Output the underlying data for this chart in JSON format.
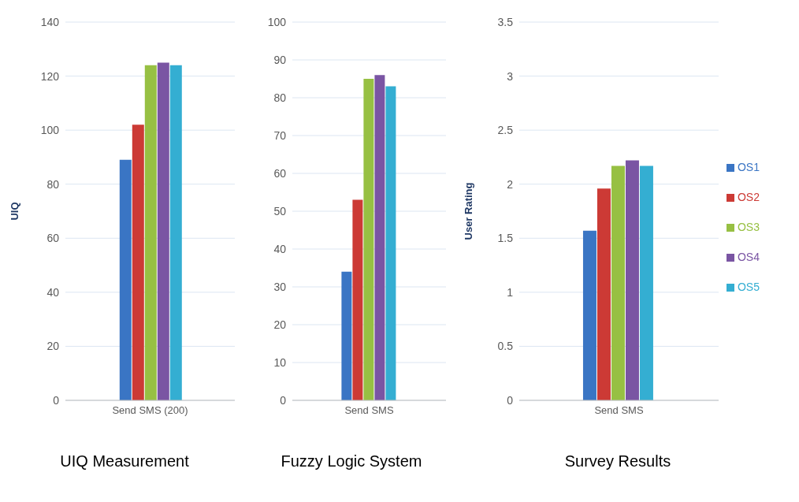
{
  "chart_data": [
    {
      "type": "bar",
      "title": "UIQ Measurement",
      "ylabel": "UIQ",
      "categories": [
        "Send SMS (200)"
      ],
      "ylim": [
        0,
        140
      ],
      "yticks": [
        0,
        20,
        40,
        60,
        80,
        100,
        120,
        140
      ],
      "grid": "y",
      "series": [
        {
          "color": "#3a75c4",
          "values": [
            89
          ]
        },
        {
          "color": "#cc3a35",
          "values": [
            102
          ]
        },
        {
          "color": "#97c043",
          "values": [
            124
          ]
        },
        {
          "color": "#7a55a3",
          "values": [
            125
          ]
        },
        {
          "color": "#34aed2",
          "values": [
            124
          ]
        }
      ]
    },
    {
      "type": "bar",
      "title": "Fuzzy Logic System",
      "categories": [
        "Send SMS"
      ],
      "ylim": [
        0,
        100
      ],
      "yticks": [
        0,
        10,
        20,
        30,
        40,
        50,
        60,
        70,
        80,
        90,
        100
      ],
      "grid": "y",
      "series": [
        {
          "color": "#3a75c4",
          "values": [
            34
          ]
        },
        {
          "color": "#cc3a35",
          "values": [
            53
          ]
        },
        {
          "color": "#97c043",
          "values": [
            85
          ]
        },
        {
          "color": "#7a55a3",
          "values": [
            86
          ]
        },
        {
          "color": "#34aed2",
          "values": [
            83
          ]
        }
      ]
    },
    {
      "type": "bar",
      "title": "Survey Results",
      "ylabel": "User Rating",
      "categories": [
        "Send SMS"
      ],
      "ylim": [
        0,
        3.5
      ],
      "yticks": [
        0,
        0.5,
        1,
        1.5,
        2,
        2.5,
        3,
        3.5
      ],
      "grid": "y",
      "legend": "right",
      "series": [
        {
          "name": "OS1",
          "color": "#3a75c4",
          "values": [
            1.57
          ]
        },
        {
          "name": "OS2",
          "color": "#cc3a35",
          "values": [
            1.96
          ]
        },
        {
          "name": "OS3",
          "color": "#97c043",
          "values": [
            2.17
          ]
        },
        {
          "name": "OS4",
          "color": "#7a55a3",
          "values": [
            2.22
          ]
        },
        {
          "name": "OS5",
          "color": "#34aed2",
          "values": [
            2.17
          ]
        }
      ]
    }
  ]
}
